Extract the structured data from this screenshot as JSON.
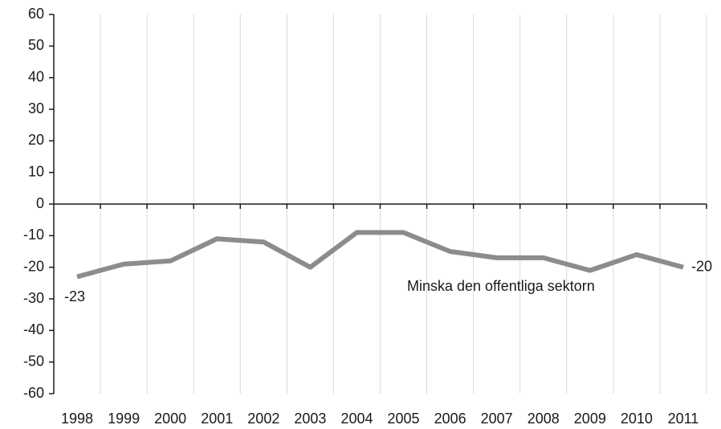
{
  "chart_data": {
    "type": "line",
    "categories": [
      "1998",
      "1999",
      "2000",
      "2001",
      "2002",
      "2003",
      "2004",
      "2005",
      "2006",
      "2007",
      "2008",
      "2009",
      "2010",
      "2011"
    ],
    "series": [
      {
        "name": "Minska den offentliga sektorn",
        "color": "#8c8c8c",
        "values": [
          -23,
          -19,
          -18,
          -11,
          -12,
          -20,
          -9,
          -9,
          -15,
          -17,
          -17,
          -21,
          -16,
          -20
        ],
        "value_labels": [
          "-23",
          null,
          null,
          null,
          null,
          null,
          null,
          null,
          null,
          null,
          null,
          null,
          null,
          "-20"
        ]
      }
    ],
    "ylim": [
      -60,
      60
    ],
    "yticks": [
      -60,
      -50,
      -40,
      -30,
      -20,
      -10,
      0,
      10,
      20,
      30,
      40,
      50,
      60
    ],
    "grid": "x"
  }
}
